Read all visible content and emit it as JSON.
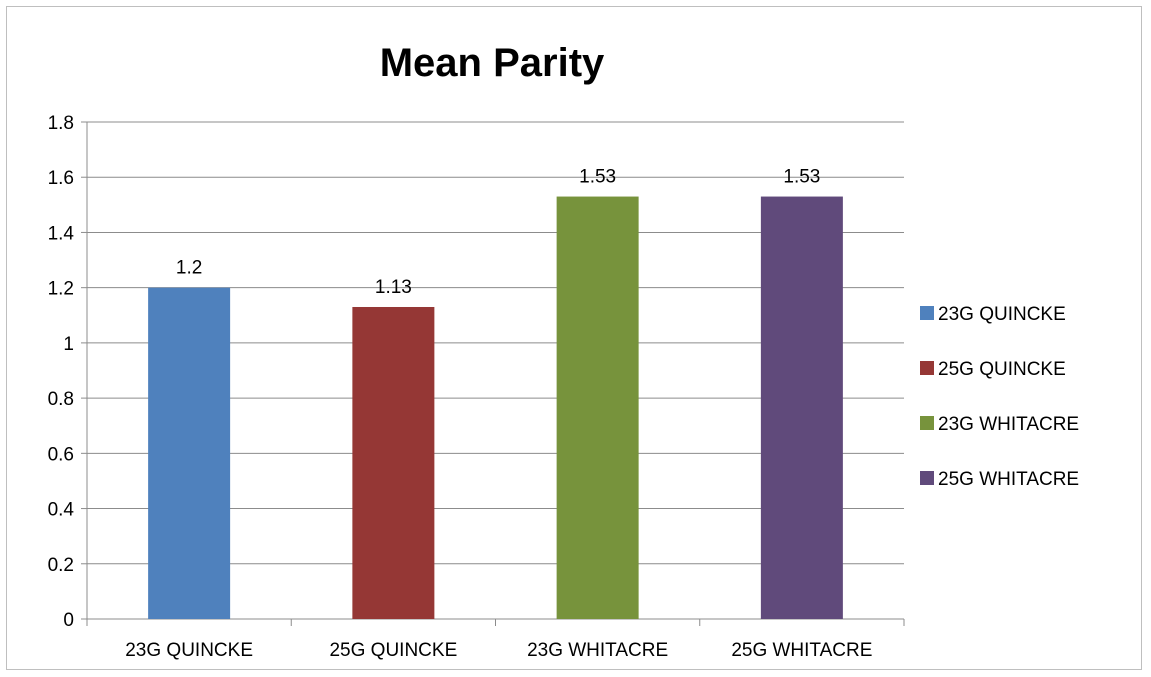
{
  "chart_data": {
    "type": "bar",
    "title": "Mean Parity",
    "categories": [
      "23G QUINCKE",
      "25G QUINCKE",
      "23G WHITACRE",
      "25G WHITACRE"
    ],
    "values": [
      1.2,
      1.13,
      1.53,
      1.53
    ],
    "data_labels": [
      "1.2",
      "1.13",
      "1.53",
      "1.53"
    ],
    "colors": [
      "#4f81bd",
      "#953735",
      "#77933c",
      "#604a7b"
    ],
    "ylim": [
      0,
      1.8
    ],
    "yticks": [
      "0",
      "0.2",
      "0.4",
      "0.6",
      "0.8",
      "1",
      "1.2",
      "1.4",
      "1.6",
      "1.8"
    ],
    "ytick_values": [
      0,
      0.2,
      0.4,
      0.6,
      0.8,
      1,
      1.2,
      1.4,
      1.6,
      1.8
    ],
    "grid": true,
    "legend_position": "right",
    "legend": [
      "23G QUINCKE",
      "25G QUINCKE",
      "23G WHITACRE",
      "25G WHITACRE"
    ]
  }
}
